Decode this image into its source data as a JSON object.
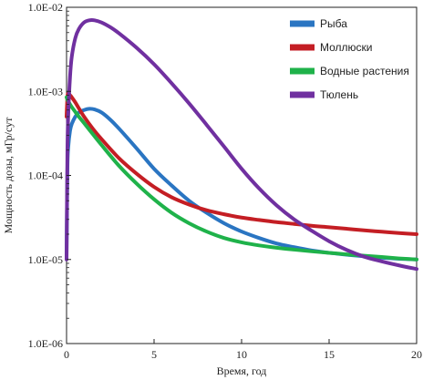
{
  "chart_data": {
    "type": "line",
    "xlabel": "Время, год",
    "ylabel": "Мощность дозы, мГр/сут",
    "xlim": [
      0,
      20
    ],
    "ylim": [
      1e-06,
      0.01
    ],
    "yscale": "log",
    "xticks": [
      0,
      5,
      10,
      15,
      20
    ],
    "yticks": [
      1e-06,
      1e-05,
      0.0001,
      0.001,
      0.01
    ],
    "xtick_labels": [
      "0",
      "5",
      "10",
      "15",
      "20"
    ],
    "ytick_labels": [
      "1.0E-06",
      "1.0E-05",
      "1.0E-04",
      "1.0E-03",
      "1.0E-02"
    ],
    "grid": false,
    "legend_position": "top-right",
    "series": [
      {
        "name": "Рыба",
        "color": "#2a75c2",
        "x": [
          0,
          0.05,
          0.1,
          0.2,
          0.3,
          0.5,
          0.7,
          1,
          1.3,
          1.6,
          2,
          2.5,
          3,
          4,
          5,
          6,
          7,
          8,
          9,
          10,
          11,
          12,
          13,
          14,
          15,
          16,
          17,
          18,
          19,
          20
        ],
        "y": [
          1.1e-05,
          0.00012,
          0.00022,
          0.00034,
          0.00041,
          0.0005,
          0.00056,
          0.0006,
          0.00062,
          0.00061,
          0.00056,
          0.00046,
          0.00036,
          0.00021,
          0.00012,
          7.6e-05,
          5e-05,
          3.6e-05,
          2.7e-05,
          2.15e-05,
          1.8e-05,
          1.55e-05,
          1.4e-05,
          1.28e-05,
          1.2e-05,
          1.14e-05,
          1.09e-05,
          1.05e-05,
          1.02e-05,
          1e-05
        ]
      },
      {
        "name": "Моллюски",
        "color": "#c41e24",
        "x": [
          0,
          0.05,
          0.1,
          0.2,
          0.3,
          0.5,
          0.7,
          1,
          1.5,
          2,
          3,
          4,
          5,
          6,
          7,
          8,
          9,
          10,
          11,
          12,
          13,
          14,
          15,
          16,
          17,
          18,
          19,
          20
        ],
        "y": [
          0.0005,
          0.00085,
          0.00095,
          0.0009,
          0.00085,
          0.00074,
          0.00063,
          0.0005,
          0.00036,
          0.00027,
          0.00016,
          0.000105,
          7.3e-05,
          5.5e-05,
          4.5e-05,
          3.85e-05,
          3.45e-05,
          3.15e-05,
          2.95e-05,
          2.78e-05,
          2.65e-05,
          2.52e-05,
          2.42e-05,
          2.32e-05,
          2.22e-05,
          2.14e-05,
          2.06e-05,
          2e-05
        ]
      },
      {
        "name": "Водные растения",
        "color": "#1fb24a",
        "x": [
          0,
          0.05,
          0.1,
          0.2,
          0.3,
          0.5,
          0.7,
          1,
          1.5,
          2,
          3,
          4,
          5,
          6,
          7,
          8,
          9,
          10,
          11,
          12,
          13,
          14,
          15,
          16,
          17,
          18,
          19,
          20
        ],
        "y": [
          0.00085,
          0.0008,
          0.00076,
          0.0007,
          0.00065,
          0.00057,
          0.0005,
          0.00042,
          0.00031,
          0.00023,
          0.00013,
          8e-05,
          5.2e-05,
          3.6e-05,
          2.7e-05,
          2.15e-05,
          1.8e-05,
          1.6e-05,
          1.47e-05,
          1.38e-05,
          1.31e-05,
          1.25e-05,
          1.2e-05,
          1.15e-05,
          1.11e-05,
          1.07e-05,
          1.03e-05,
          1e-05
        ]
      },
      {
        "name": "Тюлень",
        "color": "#7030a0",
        "x": [
          0,
          0.05,
          0.1,
          0.2,
          0.3,
          0.5,
          0.7,
          1,
          1.3,
          1.6,
          2,
          2.5,
          3,
          4,
          5,
          6,
          7,
          8,
          9,
          10,
          11,
          12,
          13,
          14,
          15,
          16,
          17,
          18,
          19,
          20
        ],
        "y": [
          1e-05,
          0.0002,
          0.00055,
          0.0015,
          0.0026,
          0.0043,
          0.0055,
          0.0066,
          0.007,
          0.007,
          0.0066,
          0.0058,
          0.0049,
          0.0033,
          0.0021,
          0.00125,
          0.00072,
          0.0004,
          0.00022,
          0.00012,
          7e-05,
          4.4e-05,
          3e-05,
          2.2e-05,
          1.65e-05,
          1.3e-05,
          1.08e-05,
          9.5e-06,
          8.5e-06,
          7.7e-06
        ]
      }
    ]
  }
}
